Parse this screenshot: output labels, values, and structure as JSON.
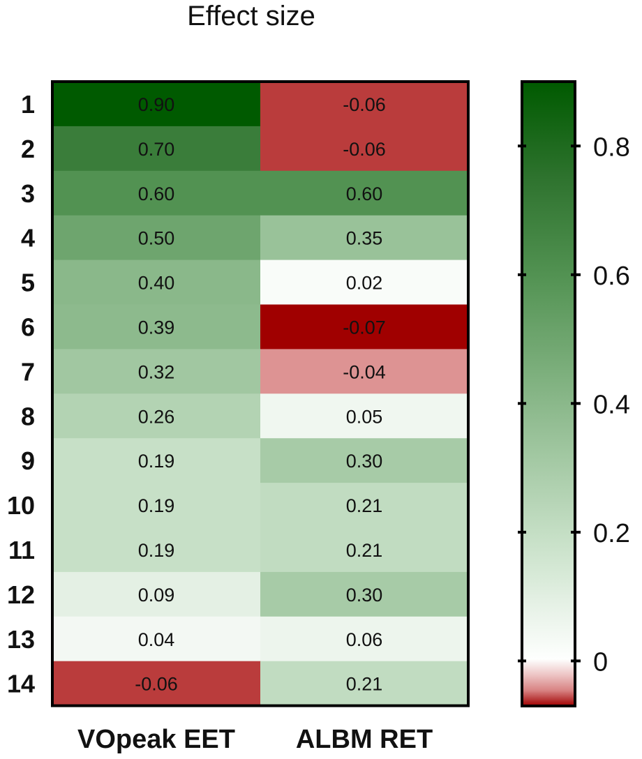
{
  "chart_data": {
    "type": "heatmap",
    "title": "Effect size",
    "rows": [
      "1",
      "2",
      "3",
      "4",
      "5",
      "6",
      "7",
      "8",
      "9",
      "10",
      "11",
      "12",
      "13",
      "14"
    ],
    "columns": [
      "VOpeak EET",
      "ALBM RET"
    ],
    "values": [
      [
        0.9,
        -0.06
      ],
      [
        0.7,
        -0.06
      ],
      [
        0.6,
        0.6
      ],
      [
        0.5,
        0.35
      ],
      [
        0.4,
        0.02
      ],
      [
        0.39,
        -0.07
      ],
      [
        0.32,
        -0.04
      ],
      [
        0.26,
        0.05
      ],
      [
        0.19,
        0.3
      ],
      [
        0.19,
        0.21
      ],
      [
        0.19,
        0.21
      ],
      [
        0.09,
        0.3
      ],
      [
        0.04,
        0.06
      ],
      [
        -0.06,
        0.21
      ]
    ],
    "value_labels": [
      [
        "0.90",
        "-0.06"
      ],
      [
        "0.70",
        "-0.06"
      ],
      [
        "0.60",
        "0.60"
      ],
      [
        "0.50",
        "0.35"
      ],
      [
        "0.40",
        "0.02"
      ],
      [
        "0.39",
        "-0.07"
      ],
      [
        "0.32",
        "-0.04"
      ],
      [
        "0.26",
        "0.05"
      ],
      [
        "0.19",
        "0.30"
      ],
      [
        "0.19",
        "0.21"
      ],
      [
        "0.19",
        "0.21"
      ],
      [
        "0.09",
        "0.30"
      ],
      [
        "0.04",
        "0.06"
      ],
      [
        "-0.06",
        "0.21"
      ]
    ],
    "colorbar": {
      "range": [
        -0.07,
        0.9
      ],
      "ticks": [
        0,
        0.2,
        0.4,
        0.6,
        0.8
      ],
      "tick_labels": [
        "0",
        "0.2",
        "0.4",
        "0.6",
        "0.8"
      ],
      "position": "right"
    },
    "colors": {
      "max": "#005a00",
      "mid_high": "#5a9a5a",
      "zero": "#ffffff",
      "min": "#a00000",
      "border": "#000000"
    }
  }
}
